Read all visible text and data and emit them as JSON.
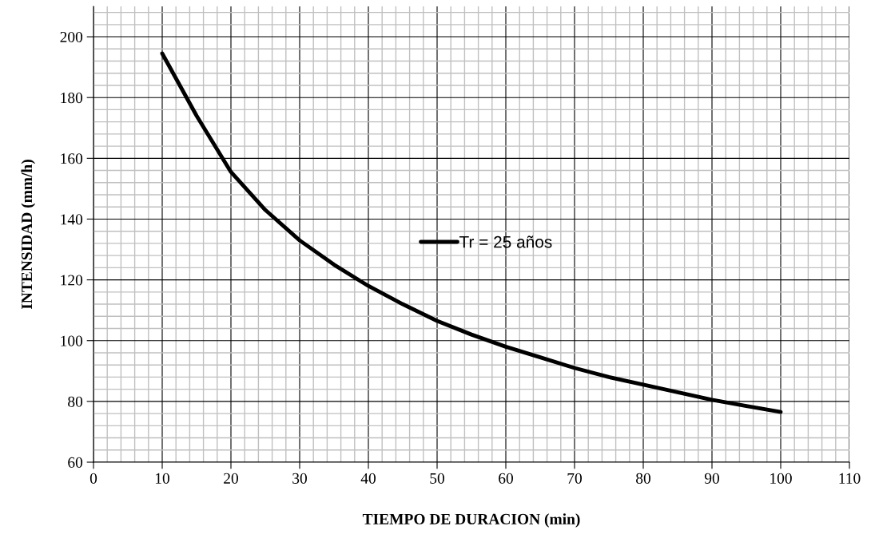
{
  "chart_data": {
    "type": "line",
    "xlabel": "TIEMPO DE DURACION (min)",
    "ylabel": "INTENSIDAD (mm/h)",
    "xlim": [
      0,
      110
    ],
    "ylim": [
      60,
      210
    ],
    "xticks": [
      0,
      10,
      20,
      30,
      40,
      50,
      60,
      70,
      80,
      90,
      100,
      110
    ],
    "yticks": [
      60,
      80,
      100,
      120,
      140,
      160,
      180,
      200
    ],
    "grid": true,
    "legend": "center",
    "marker": "none",
    "line_style": "solid",
    "series": [
      {
        "name": "Tr = 25 años",
        "color": "#000000",
        "x": [
          10,
          15,
          20,
          25,
          30,
          35,
          40,
          45,
          50,
          55,
          60,
          65,
          70,
          75,
          80,
          85,
          90,
          95,
          100
        ],
        "values": [
          194.5,
          174,
          155.5,
          143,
          133,
          125,
          118,
          112,
          106.5,
          102,
          98,
          94.5,
          91,
          88,
          85.5,
          83,
          80.5,
          78.5,
          76.5
        ]
      }
    ]
  }
}
